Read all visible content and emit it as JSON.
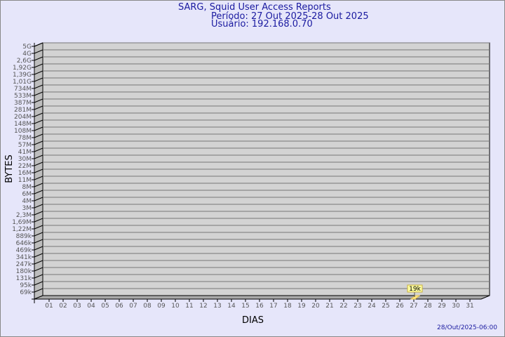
{
  "header": {
    "title": "SARG, Squid User Access Reports",
    "period": "Período: 27 Out 2025-28 Out 2025",
    "user": "Usuário: 192.168.0.70"
  },
  "footer": {
    "timestamp": "28/Out/2025-06:00"
  },
  "colors": {
    "background": "#e6e6fa",
    "plot": "#d3d3d3",
    "bar": "#ffe680",
    "title": "#1a1aa0"
  },
  "chart_data": {
    "type": "bar",
    "xlabel": "DIAS",
    "ylabel": "BYTES",
    "y_scale": "log",
    "y_ticks": [
      "5G",
      "4G",
      "2,6G",
      "1,92G",
      "1,39G",
      "1,01G",
      "734M",
      "533M",
      "387M",
      "281M",
      "204M",
      "148M",
      "108M",
      "78M",
      "57M",
      "41M",
      "30M",
      "22M",
      "16M",
      "11M",
      "8M",
      "6M",
      "4M",
      "3M",
      "2,3M",
      "1,69M",
      "1,22M",
      "889k",
      "646k",
      "469k",
      "341k",
      "247k",
      "180k",
      "131k",
      "95k",
      "69k"
    ],
    "categories": [
      "01",
      "02",
      "03",
      "04",
      "05",
      "06",
      "07",
      "08",
      "09",
      "10",
      "11",
      "12",
      "13",
      "14",
      "15",
      "16",
      "17",
      "18",
      "19",
      "20",
      "21",
      "22",
      "23",
      "24",
      "25",
      "26",
      "27",
      "28",
      "29",
      "30",
      "31"
    ],
    "values": [
      {
        "day": "27",
        "bytes": 19000,
        "label": "19k"
      }
    ]
  }
}
